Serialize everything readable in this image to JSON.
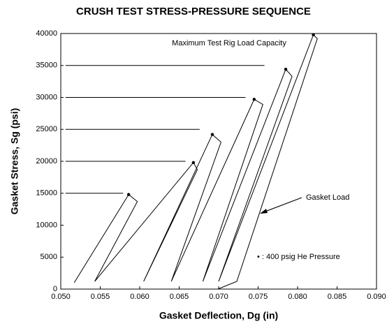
{
  "chart_data": {
    "type": "line",
    "title": "CRUSH TEST STRESS-PRESSURE SEQUENCE",
    "x_label": "Gasket Deflection, Dg (in)",
    "y_label": "Gasket Stress, Sg (psi)",
    "xlim": [
      0.05,
      0.09
    ],
    "ylim": [
      0,
      40000
    ],
    "xticks": [
      {
        "value": 0.05,
        "label": "0.050"
      },
      {
        "value": 0.055,
        "label": "0.055"
      },
      {
        "value": 0.06,
        "label": "0.060"
      },
      {
        "value": 0.065,
        "label": "0.065"
      },
      {
        "value": 0.07,
        "label": "0.070"
      },
      {
        "value": 0.075,
        "label": "0.075"
      },
      {
        "value": 0.08,
        "label": "0.080"
      },
      {
        "value": 0.085,
        "label": "0.085"
      },
      {
        "value": 0.09,
        "label": "0.090"
      }
    ],
    "yticks": [
      0,
      5000,
      10000,
      15000,
      20000,
      25000,
      30000,
      35000,
      40000
    ],
    "grid": false,
    "series": [
      {
        "mode": "line",
        "color": "#000000",
        "x": [
          0.0517,
          0.0586,
          0.0597,
          0.0543,
          0.0668,
          0.0673,
          0.0605,
          0.0692,
          0.0703,
          0.064,
          0.0745,
          0.0756,
          0.068,
          0.0785,
          0.0793,
          0.07,
          0.082,
          0.0825,
          0.0723,
          0.0699
        ],
        "values": [
          1000,
          14800,
          13700,
          1200,
          19800,
          18700,
          1200,
          24200,
          23000,
          1200,
          29700,
          28900,
          1200,
          34400,
          33300,
          1200,
          39800,
          39200,
          1200,
          0
        ]
      },
      {
        "mode": "markers",
        "color": "#000000",
        "x": [
          0.0586,
          0.0668,
          0.0692,
          0.0745,
          0.0785,
          0.082
        ],
        "values": [
          14800,
          19800,
          24200,
          29700,
          34400,
          39800
        ]
      },
      {
        "mode": "line",
        "color": "#000000",
        "x": [
          0.0506,
          0.0579
        ],
        "values": [
          15000,
          15000
        ]
      },
      {
        "mode": "line",
        "color": "#000000",
        "x": [
          0.0506,
          0.0658
        ],
        "values": [
          20000,
          20000
        ]
      },
      {
        "mode": "line",
        "color": "#000000",
        "x": [
          0.0506,
          0.0676
        ],
        "values": [
          25000,
          25000
        ]
      },
      {
        "mode": "line",
        "color": "#000000",
        "x": [
          0.0506,
          0.0734
        ],
        "values": [
          30000,
          30000
        ]
      },
      {
        "mode": "line",
        "color": "#000000",
        "x": [
          0.0506,
          0.0758
        ],
        "values": [
          35000,
          35000
        ]
      }
    ],
    "annotations": [
      "Maximum Test Rig Load Capacity",
      "Gasket Load",
      "• : 400 psig He Pressure"
    ]
  }
}
